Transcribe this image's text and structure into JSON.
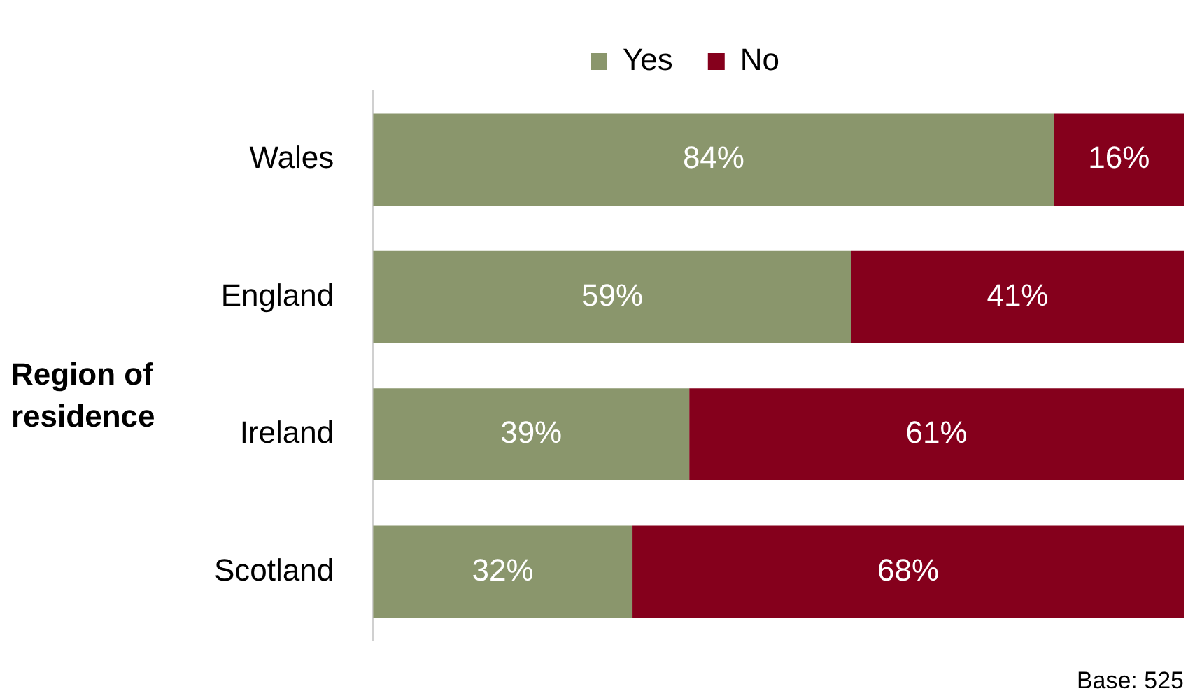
{
  "chart_data": {
    "type": "bar",
    "orientation": "horizontal",
    "stacked": true,
    "ylabel": "Region of residence",
    "categories": [
      "Wales",
      "England",
      "Ireland",
      "Scotland"
    ],
    "series": [
      {
        "name": "Yes",
        "color": "#8a966c",
        "values": [
          84,
          59,
          39,
          32
        ],
        "value_labels": [
          "84%",
          "59%",
          "39%",
          "32%"
        ]
      },
      {
        "name": "No",
        "color": "#85001c",
        "values": [
          16,
          41,
          61,
          68
        ],
        "value_labels": [
          "16%",
          "41%",
          "61%",
          "68%"
        ]
      }
    ],
    "xlim": [
      0,
      100
    ],
    "tick_labels": "y",
    "grid": false,
    "legend": "top",
    "annotations": [
      "Base: 525"
    ]
  }
}
